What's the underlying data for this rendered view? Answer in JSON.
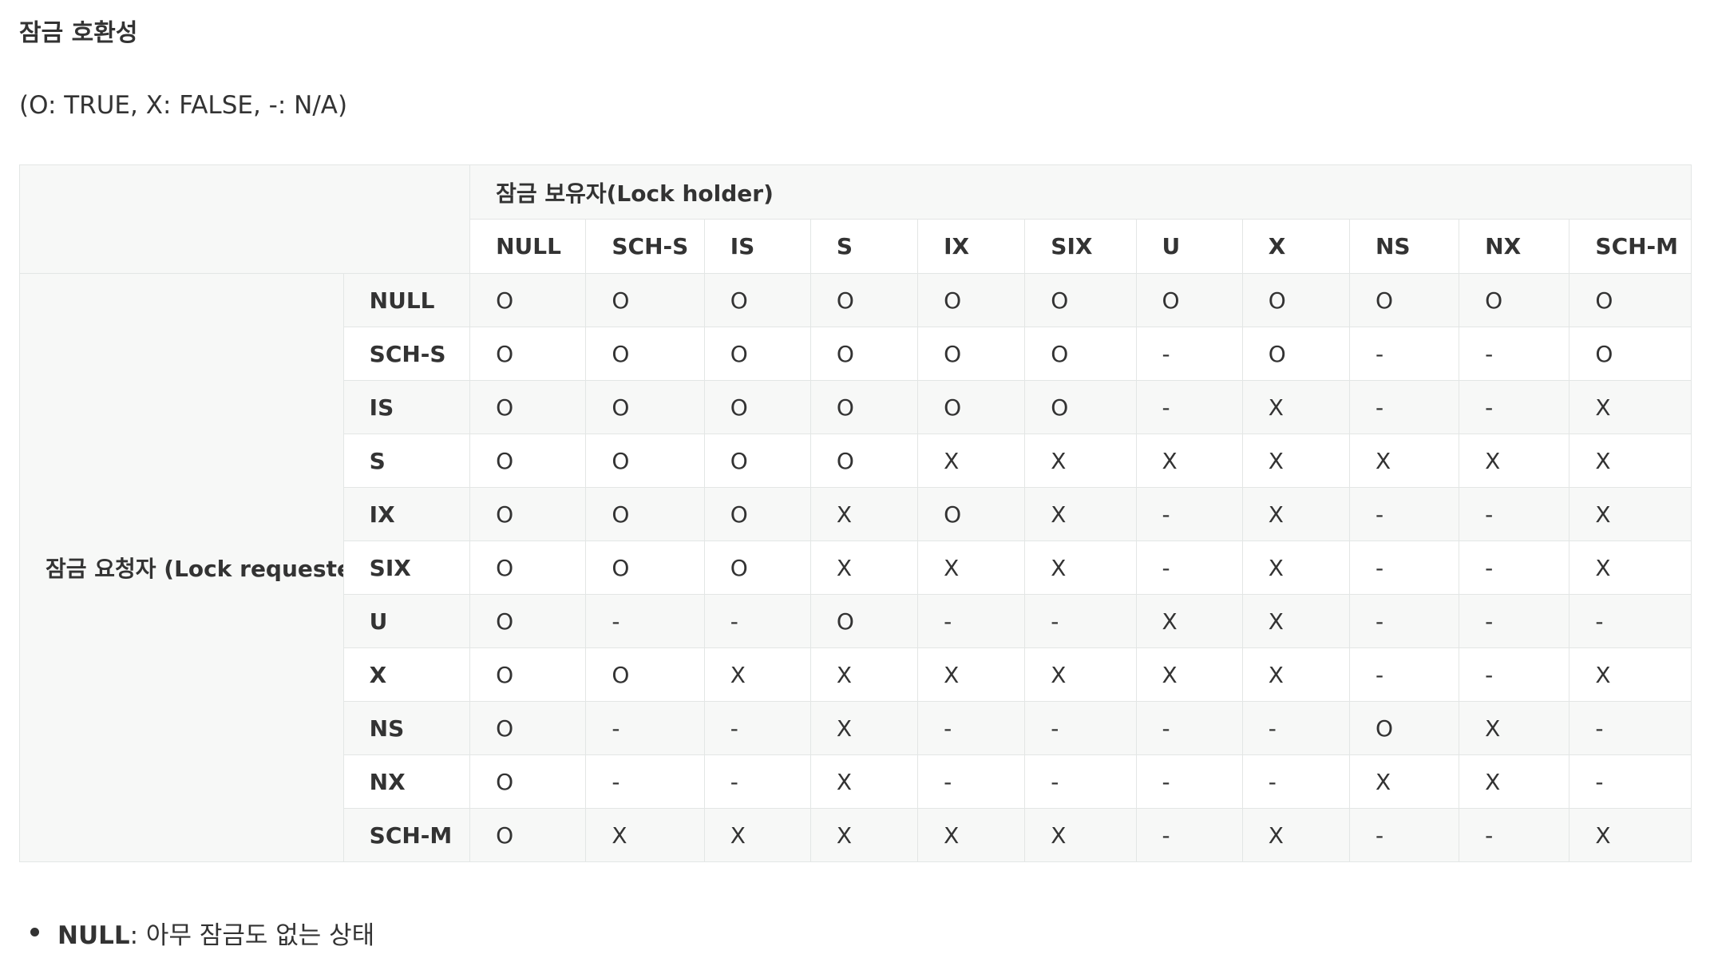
{
  "heading": "잠금 호환성",
  "legend": "(O: TRUE, X: FALSE, -: N/A)",
  "table": {
    "holder_header": "잠금 보유자(Lock holder)",
    "requester_header": "잠금 요청자 (Lock requester)",
    "columns": [
      "NULL",
      "SCH-S",
      "IS",
      "S",
      "IX",
      "SIX",
      "U",
      "X",
      "NS",
      "NX",
      "SCH-M"
    ],
    "rows": [
      {
        "label": "NULL",
        "cells": [
          "O",
          "O",
          "O",
          "O",
          "O",
          "O",
          "O",
          "O",
          "O",
          "O",
          "O"
        ]
      },
      {
        "label": "SCH-S",
        "cells": [
          "O",
          "O",
          "O",
          "O",
          "O",
          "O",
          "-",
          "O",
          "-",
          "-",
          "O"
        ]
      },
      {
        "label": "IS",
        "cells": [
          "O",
          "O",
          "O",
          "O",
          "O",
          "O",
          "-",
          "X",
          "-",
          "-",
          "X"
        ]
      },
      {
        "label": "S",
        "cells": [
          "O",
          "O",
          "O",
          "O",
          "X",
          "X",
          "X",
          "X",
          "X",
          "X",
          "X"
        ]
      },
      {
        "label": "IX",
        "cells": [
          "O",
          "O",
          "O",
          "X",
          "O",
          "X",
          "-",
          "X",
          "-",
          "-",
          "X"
        ]
      },
      {
        "label": "SIX",
        "cells": [
          "O",
          "O",
          "O",
          "X",
          "X",
          "X",
          "-",
          "X",
          "-",
          "-",
          "X"
        ]
      },
      {
        "label": "U",
        "cells": [
          "O",
          "-",
          "-",
          "O",
          "-",
          "-",
          "X",
          "X",
          "-",
          "-",
          "-"
        ]
      },
      {
        "label": "X",
        "cells": [
          "O",
          "O",
          "X",
          "X",
          "X",
          "X",
          "X",
          "X",
          "-",
          "-",
          "X"
        ]
      },
      {
        "label": "NS",
        "cells": [
          "O",
          "-",
          "-",
          "X",
          "-",
          "-",
          "-",
          "-",
          "O",
          "X",
          "-"
        ]
      },
      {
        "label": "NX",
        "cells": [
          "O",
          "-",
          "-",
          "X",
          "-",
          "-",
          "-",
          "-",
          "X",
          "X",
          "-"
        ]
      },
      {
        "label": "SCH-M",
        "cells": [
          "O",
          "X",
          "X",
          "X",
          "X",
          "X",
          "-",
          "X",
          "-",
          "-",
          "X"
        ]
      }
    ]
  },
  "bullets": [
    {
      "term": "NULL",
      "text": ": 아무 잠금도 없는 상태"
    }
  ]
}
